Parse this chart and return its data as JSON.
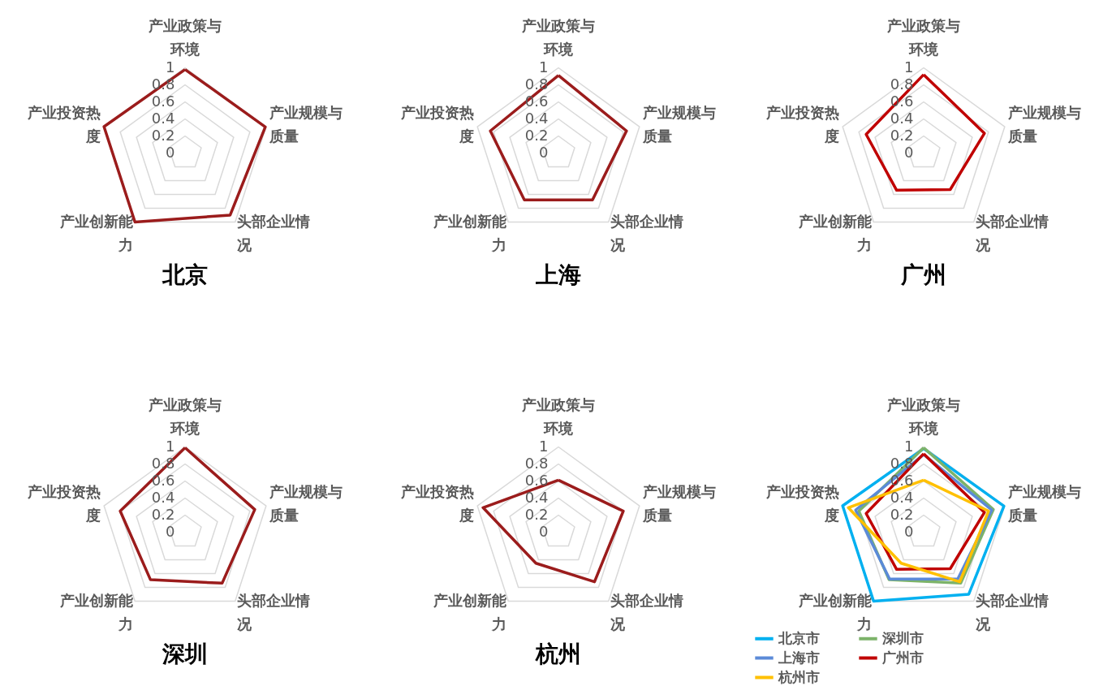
{
  "chart_data": [
    {
      "type": "radar",
      "title": "北京",
      "categories": [
        "产业政策与环境",
        "产业规模与质量",
        "头部企业情况",
        "产业创新能力",
        "产业投资热度"
      ],
      "series": [
        {
          "color": "#9b1c1c",
          "values": [
            0.98,
            0.99,
            0.9,
            1.0,
            1.0
          ]
        }
      ],
      "ylim": [
        0,
        1
      ],
      "yticks": [
        0,
        0.2,
        0.4,
        0.6,
        0.8,
        1
      ],
      "grid": true
    },
    {
      "type": "radar",
      "title": "上海",
      "categories": [
        "产业政策与环境",
        "产业规模与质量",
        "头部企业情况",
        "产业创新能力",
        "产业投资热度"
      ],
      "series": [
        {
          "color": "#9b1c1c",
          "values": [
            0.91,
            0.84,
            0.68,
            0.68,
            0.84
          ]
        }
      ],
      "ylim": [
        0,
        1
      ],
      "yticks": [
        0,
        0.2,
        0.4,
        0.6,
        0.8,
        1
      ],
      "grid": true
    },
    {
      "type": "radar",
      "title": "广州",
      "categories": [
        "产业政策与环境",
        "产业规模与质量",
        "头部企业情况",
        "产业创新能力",
        "产业投资热度"
      ],
      "series": [
        {
          "color": "#c00000",
          "values": [
            0.92,
            0.75,
            0.53,
            0.54,
            0.71
          ]
        }
      ],
      "ylim": [
        0,
        1
      ],
      "yticks": [
        0,
        0.2,
        0.4,
        0.6,
        0.8,
        1
      ],
      "grid": true
    },
    {
      "type": "radar",
      "title": "深圳",
      "categories": [
        "产业政策与环境",
        "产业规模与质量",
        "头部企业情况",
        "产业创新能力",
        "产业投资热度"
      ],
      "series": [
        {
          "color": "#9b1c1c",
          "values": [
            0.99,
            0.86,
            0.74,
            0.69,
            0.8
          ]
        }
      ],
      "ylim": [
        0,
        1
      ],
      "yticks": [
        0,
        0.2,
        0.4,
        0.6,
        0.8,
        1
      ],
      "grid": true
    },
    {
      "type": "radar",
      "title": "杭州",
      "categories": [
        "产业政策与环境",
        "产业规模与质量",
        "头部企业情况",
        "产业创新能力",
        "产业投资热度"
      ],
      "series": [
        {
          "color": "#9b1c1c",
          "values": [
            0.61,
            0.8,
            0.72,
            0.45,
            0.93
          ]
        }
      ],
      "ylim": [
        0,
        1
      ],
      "yticks": [
        0,
        0.2,
        0.4,
        0.6,
        0.8,
        1
      ],
      "grid": true
    },
    {
      "type": "radar",
      "categories": [
        "产业政策与环境",
        "产业规模与质量",
        "头部企业情况",
        "产业创新能力",
        "产业投资热度"
      ],
      "series": [
        {
          "name": "北京市",
          "color": "#00b0f0",
          "values": [
            0.98,
            0.99,
            0.9,
            1.0,
            1.0
          ]
        },
        {
          "name": "深圳市",
          "color": "#7cb36a",
          "values": [
            0.99,
            0.86,
            0.74,
            0.69,
            0.8
          ]
        },
        {
          "name": "上海市",
          "color": "#5b8ad8",
          "values": [
            0.91,
            0.84,
            0.68,
            0.68,
            0.84
          ]
        },
        {
          "name": "广州市",
          "color": "#c00000",
          "values": [
            0.92,
            0.75,
            0.53,
            0.54,
            0.71
          ]
        },
        {
          "name": "杭州市",
          "color": "#ffc000",
          "values": [
            0.61,
            0.8,
            0.72,
            0.45,
            0.93
          ]
        }
      ],
      "ylim": [
        0,
        1
      ],
      "yticks": [
        0,
        0.2,
        0.4,
        0.6,
        0.8,
        1
      ],
      "grid": true,
      "legend": "bottom"
    }
  ]
}
